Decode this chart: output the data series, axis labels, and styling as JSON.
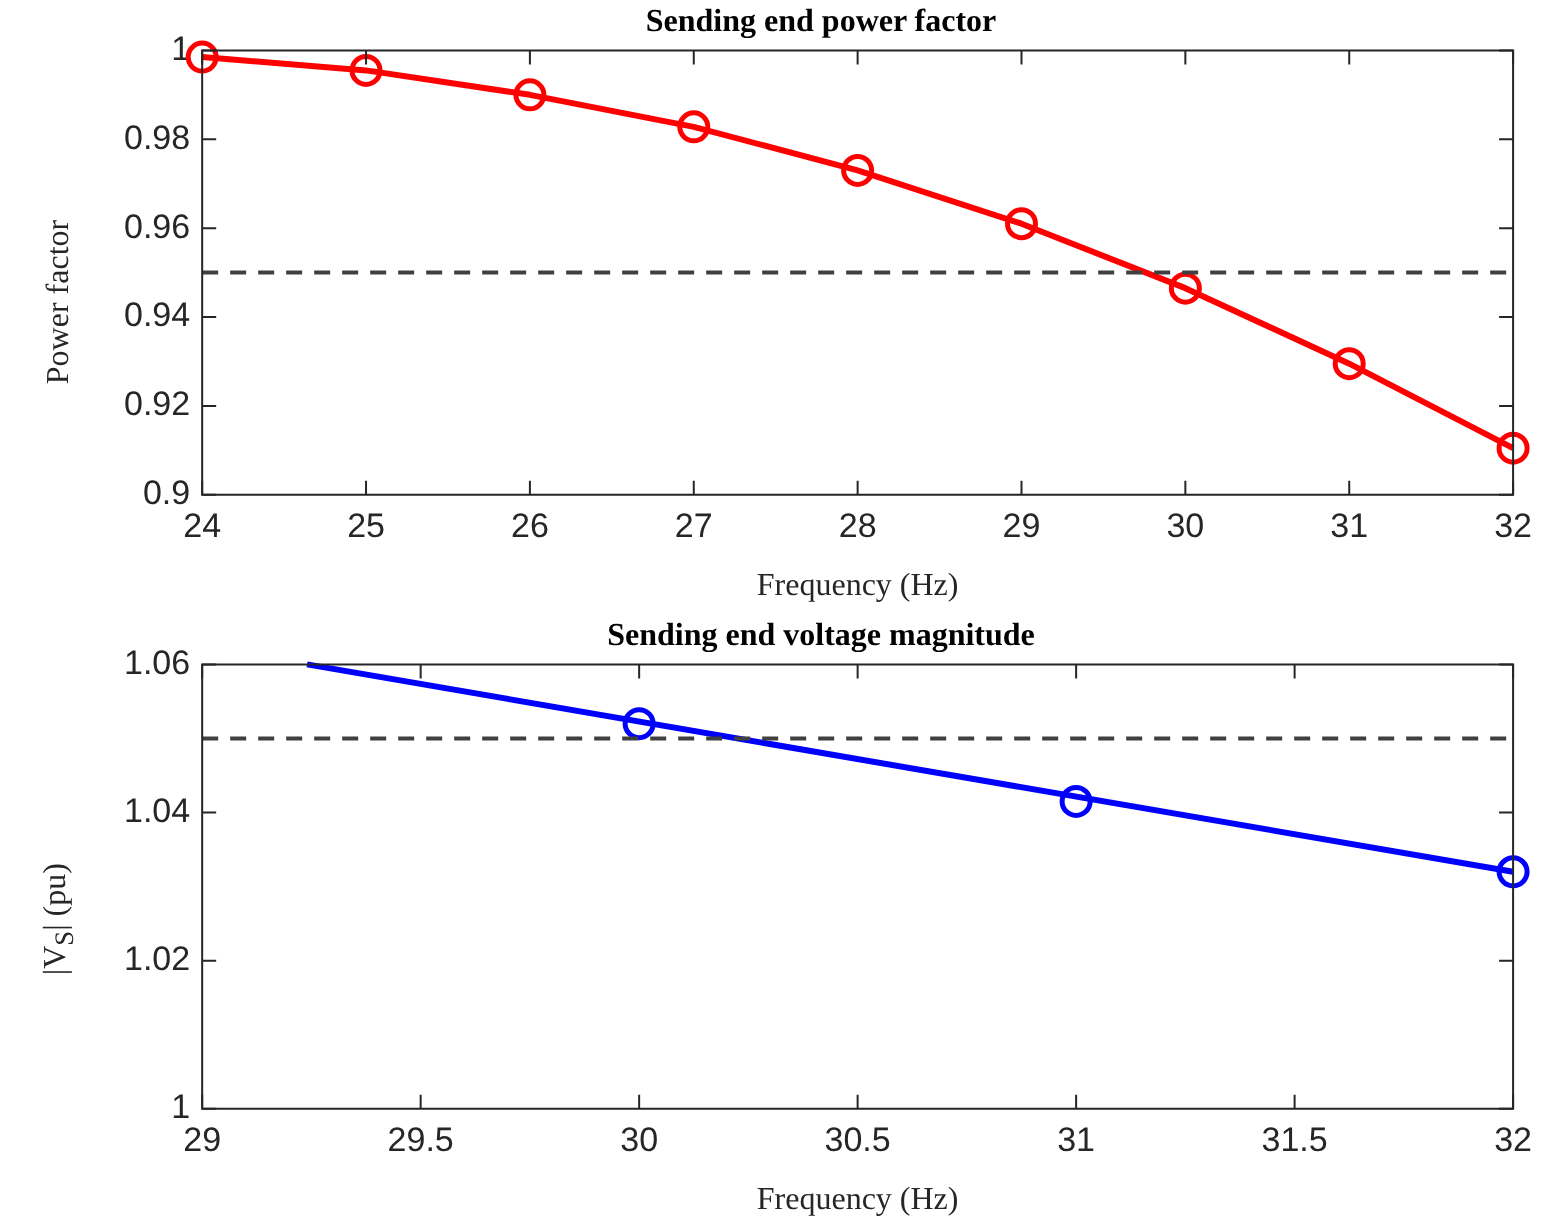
{
  "chart_data": [
    {
      "type": "line",
      "title": "Sending end power factor",
      "xlabel": "Frequency (Hz)",
      "ylabel": "Power factor",
      "x": [
        24,
        25,
        26,
        27,
        28,
        29,
        30,
        31,
        32
      ],
      "series": [
        {
          "color": "#ff0000",
          "values": [
            0.9985,
            0.9955,
            0.99,
            0.9828,
            0.973,
            0.961,
            0.9465,
            0.9295,
            0.9105
          ],
          "marker": "circle"
        }
      ],
      "xlim": [
        24,
        32
      ],
      "xticks": [
        24,
        25,
        26,
        27,
        28,
        29,
        30,
        31,
        32
      ],
      "ylim": [
        0.9,
        1
      ],
      "yticks": [
        0.9,
        0.92,
        0.94,
        0.96,
        0.98,
        1
      ],
      "grid": false,
      "legend": false,
      "ref_lines": [
        {
          "axis": "y",
          "value": 0.95,
          "color": "#404040",
          "line_style": "dashed"
        }
      ]
    },
    {
      "type": "line",
      "title": "Sending end voltage magnitude",
      "xlabel": "Frequency (Hz)",
      "ylabel": "|V$_{S}$| (pu)",
      "series": [
        {
          "color": "#0000ff",
          "x": [
            29.24,
            32
          ],
          "values": [
            1.06,
            1.032
          ],
          "marker": "none"
        },
        {
          "type": "scatter",
          "color": "#0000ff",
          "x": [
            30,
            31,
            32
          ],
          "values": [
            1.052,
            1.0415,
            1.032
          ],
          "marker": "circle"
        }
      ],
      "xlim": [
        29,
        32
      ],
      "xticks": [
        29,
        {
          "value": 29.5,
          "label": "29.5"
        },
        30,
        {
          "value": 30.5,
          "label": "30.5"
        },
        31,
        {
          "value": 31.5,
          "label": "31.5"
        },
        32
      ],
      "ylim": [
        1,
        1.06
      ],
      "yticks": [
        1,
        1.02,
        1.04,
        1.06
      ],
      "grid": false,
      "legend": false,
      "ref_lines": [
        {
          "axis": "y",
          "value": 1.05,
          "color": "#404040",
          "line_style": "dashed"
        }
      ]
    }
  ]
}
